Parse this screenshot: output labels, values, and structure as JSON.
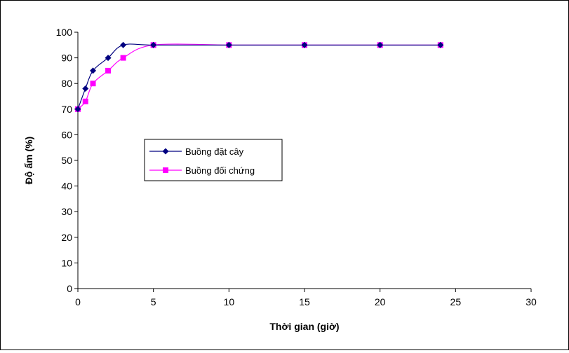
{
  "chart_data": {
    "type": "line",
    "title": "",
    "xlabel": "Thời gian (giờ)",
    "ylabel": "Độ ẩm (%)",
    "xlim": [
      0,
      30
    ],
    "ylim": [
      0,
      100
    ],
    "x_ticks": [
      0,
      5,
      10,
      15,
      20,
      25,
      30
    ],
    "y_ticks": [
      0,
      10,
      20,
      30,
      40,
      50,
      60,
      70,
      80,
      90,
      100
    ],
    "grid": false,
    "legend_position": "center-left",
    "series": [
      {
        "name": "Buồng đặt cây",
        "color": "#000080",
        "marker": "diamond",
        "x": [
          0,
          0.5,
          1,
          2,
          3,
          5,
          10,
          15,
          20,
          24
        ],
        "y": [
          70,
          78,
          85,
          90,
          95,
          95,
          95,
          95,
          95,
          95
        ]
      },
      {
        "name": "Buồng đối chứng",
        "color": "#FF00FF",
        "marker": "square",
        "x": [
          0,
          0.5,
          1,
          2,
          3,
          5,
          10,
          15,
          20,
          24
        ],
        "y": [
          70,
          73,
          80,
          85,
          90,
          95,
          95,
          95,
          95,
          95
        ]
      }
    ]
  }
}
